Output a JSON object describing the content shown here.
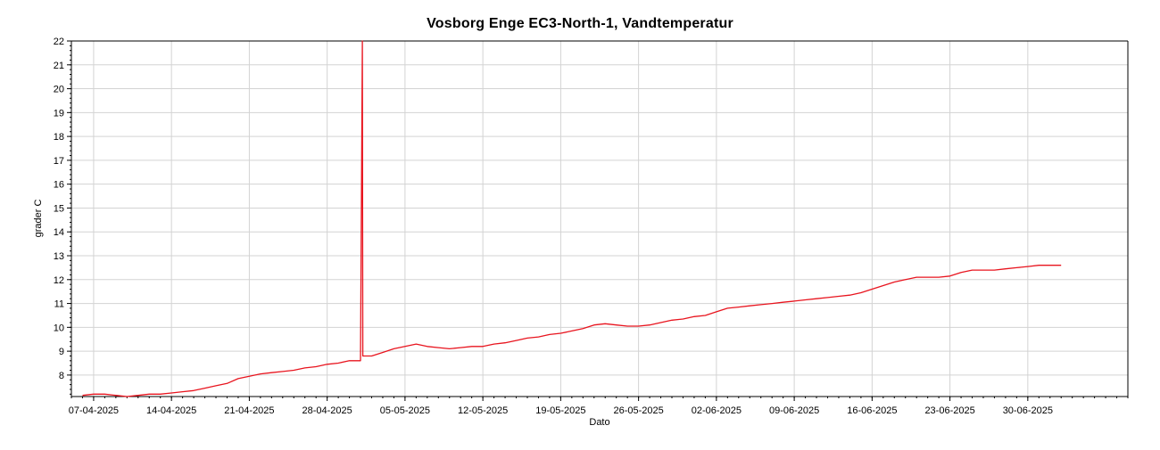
{
  "chart_data": {
    "type": "line",
    "title": "Vosborg Enge EC3-North-1, Vandtemperatur",
    "xlabel": "Dato",
    "ylabel": "grader C",
    "x_ticks": [
      "07-04-2025",
      "14-04-2025",
      "21-04-2025",
      "28-04-2025",
      "05-05-2025",
      "12-05-2025",
      "19-05-2025",
      "26-05-2025",
      "02-06-2025",
      "09-06-2025",
      "16-06-2025",
      "23-06-2025",
      "30-06-2025"
    ],
    "y_ticks": [
      8,
      9,
      10,
      11,
      12,
      13,
      14,
      15,
      16,
      17,
      18,
      19,
      20,
      21,
      22
    ],
    "xlim": [
      "2025-04-05",
      "2025-07-09"
    ],
    "ylim": [
      7.1,
      22
    ],
    "grid": true,
    "series": [
      {
        "color": "#e8141e",
        "points": [
          [
            "2025-04-06",
            7.15
          ],
          [
            "2025-04-07",
            7.2
          ],
          [
            "2025-04-08",
            7.2
          ],
          [
            "2025-04-09",
            7.15
          ],
          [
            "2025-04-10",
            7.1
          ],
          [
            "2025-04-11",
            7.15
          ],
          [
            "2025-04-12",
            7.2
          ],
          [
            "2025-04-13",
            7.2
          ],
          [
            "2025-04-14",
            7.25
          ],
          [
            "2025-04-15",
            7.3
          ],
          [
            "2025-04-16",
            7.35
          ],
          [
            "2025-04-17",
            7.45
          ],
          [
            "2025-04-18",
            7.55
          ],
          [
            "2025-04-19",
            7.65
          ],
          [
            "2025-04-20",
            7.85
          ],
          [
            "2025-04-21",
            7.95
          ],
          [
            "2025-04-22",
            8.05
          ],
          [
            "2025-04-23",
            8.1
          ],
          [
            "2025-04-24",
            8.15
          ],
          [
            "2025-04-25",
            8.2
          ],
          [
            "2025-04-26",
            8.3
          ],
          [
            "2025-04-27",
            8.35
          ],
          [
            "2025-04-28",
            8.45
          ],
          [
            "2025-04-29",
            8.5
          ],
          [
            "2025-04-30",
            8.6
          ],
          [
            "2025-05-01",
            8.6
          ],
          [
            "2025-05-01T04:00",
            22.0
          ],
          [
            "2025-05-01T05:00",
            8.8
          ],
          [
            "2025-05-02",
            8.8
          ],
          [
            "2025-05-03",
            8.95
          ],
          [
            "2025-05-04",
            9.1
          ],
          [
            "2025-05-05",
            9.2
          ],
          [
            "2025-05-06",
            9.3
          ],
          [
            "2025-05-07",
            9.2
          ],
          [
            "2025-05-08",
            9.15
          ],
          [
            "2025-05-09",
            9.1
          ],
          [
            "2025-05-10",
            9.15
          ],
          [
            "2025-05-11",
            9.2
          ],
          [
            "2025-05-12",
            9.2
          ],
          [
            "2025-05-13",
            9.3
          ],
          [
            "2025-05-14",
            9.35
          ],
          [
            "2025-05-15",
            9.45
          ],
          [
            "2025-05-16",
            9.55
          ],
          [
            "2025-05-17",
            9.6
          ],
          [
            "2025-05-18",
            9.7
          ],
          [
            "2025-05-19",
            9.75
          ],
          [
            "2025-05-20",
            9.85
          ],
          [
            "2025-05-21",
            9.95
          ],
          [
            "2025-05-22",
            10.1
          ],
          [
            "2025-05-23",
            10.15
          ],
          [
            "2025-05-24",
            10.1
          ],
          [
            "2025-05-25",
            10.05
          ],
          [
            "2025-05-26",
            10.05
          ],
          [
            "2025-05-27",
            10.1
          ],
          [
            "2025-05-28",
            10.2
          ],
          [
            "2025-05-29",
            10.3
          ],
          [
            "2025-05-30",
            10.35
          ],
          [
            "2025-05-31",
            10.45
          ],
          [
            "2025-06-01",
            10.5
          ],
          [
            "2025-06-02",
            10.65
          ],
          [
            "2025-06-03",
            10.8
          ],
          [
            "2025-06-04",
            10.85
          ],
          [
            "2025-06-05",
            10.9
          ],
          [
            "2025-06-06",
            10.95
          ],
          [
            "2025-06-07",
            11.0
          ],
          [
            "2025-06-08",
            11.05
          ],
          [
            "2025-06-09",
            11.1
          ],
          [
            "2025-06-10",
            11.15
          ],
          [
            "2025-06-11",
            11.2
          ],
          [
            "2025-06-12",
            11.25
          ],
          [
            "2025-06-13",
            11.3
          ],
          [
            "2025-06-14",
            11.35
          ],
          [
            "2025-06-15",
            11.45
          ],
          [
            "2025-06-16",
            11.6
          ],
          [
            "2025-06-17",
            11.75
          ],
          [
            "2025-06-18",
            11.9
          ],
          [
            "2025-06-19",
            12.0
          ],
          [
            "2025-06-20",
            12.1
          ],
          [
            "2025-06-21",
            12.1
          ],
          [
            "2025-06-22",
            12.1
          ],
          [
            "2025-06-23",
            12.15
          ],
          [
            "2025-06-24",
            12.3
          ],
          [
            "2025-06-25",
            12.4
          ],
          [
            "2025-06-26",
            12.4
          ],
          [
            "2025-06-27",
            12.4
          ],
          [
            "2025-06-28",
            12.45
          ],
          [
            "2025-06-29",
            12.5
          ],
          [
            "2025-06-30",
            12.55
          ],
          [
            "2025-07-01",
            12.6
          ],
          [
            "2025-07-02",
            12.6
          ],
          [
            "2025-07-03",
            12.6
          ]
        ]
      }
    ]
  }
}
